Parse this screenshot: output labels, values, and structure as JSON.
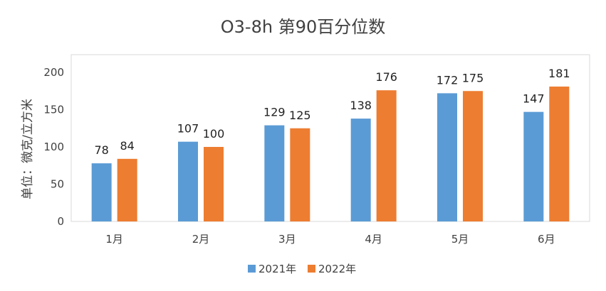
{
  "chart_data": {
    "type": "bar",
    "title": "O3-8h 第90百分位数",
    "ylabel": "单位：微克/立方米",
    "xlabel": "",
    "categories": [
      "1月",
      "2月",
      "3月",
      "4月",
      "5月",
      "6月"
    ],
    "series": [
      {
        "name": "2021年",
        "color": "#5B9BD5",
        "values": [
          78,
          107,
          129,
          138,
          172,
          147
        ]
      },
      {
        "name": "2022年",
        "color": "#ED7D31",
        "values": [
          84,
          100,
          125,
          176,
          175,
          181
        ]
      }
    ],
    "ylim": [
      0,
      200
    ],
    "yticks": [
      0,
      50,
      100,
      150,
      200
    ],
    "grid": false,
    "legend": "bottom"
  }
}
